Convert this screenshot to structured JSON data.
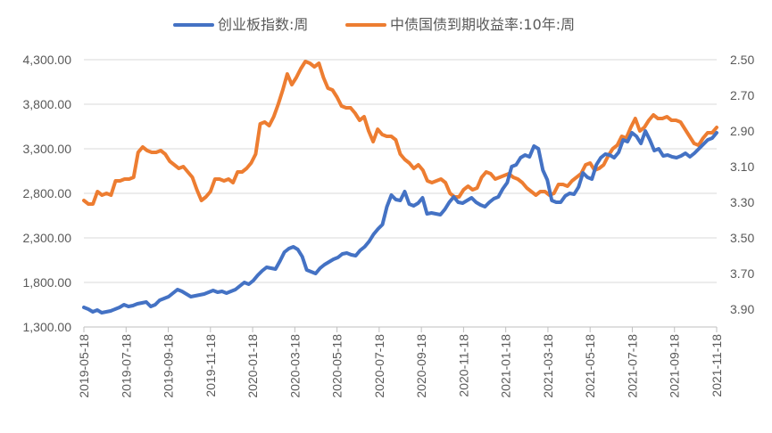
{
  "chart_data": {
    "type": "line",
    "title": "",
    "grid": "horizontal",
    "legend_position": "top",
    "y_left": {
      "min": 1300,
      "max": 4300,
      "step": 500,
      "ticks": [
        "1,300.00",
        "1,800.00",
        "2,300.00",
        "2,800.00",
        "3,300.00",
        "3,800.00",
        "4,300.00"
      ]
    },
    "y_right": {
      "min": 2.5,
      "max": 3.9,
      "reversed": true,
      "ticks": [
        "2.50",
        "2.70",
        "2.90",
        "3.10",
        "3.30",
        "3.50",
        "3.70",
        "3.90"
      ]
    },
    "x_ticks": [
      "2019-05-18",
      "2019-07-18",
      "2019-09-18",
      "2019-11-18",
      "2020-01-18",
      "2020-03-18",
      "2020-05-18",
      "2020-07-18",
      "2020-09-18",
      "2020-11-18",
      "2021-01-18",
      "2021-03-18",
      "2021-05-18",
      "2021-07-18",
      "2021-09-18",
      "2021-11-18"
    ],
    "series": [
      {
        "name": "创业板指数:周",
        "axis": "left",
        "color": "#4472C4",
        "values": [
          1520,
          1500,
          1470,
          1490,
          1460,
          1470,
          1480,
          1500,
          1520,
          1550,
          1530,
          1540,
          1560,
          1570,
          1580,
          1530,
          1550,
          1600,
          1620,
          1640,
          1680,
          1720,
          1700,
          1670,
          1640,
          1650,
          1660,
          1670,
          1690,
          1710,
          1690,
          1700,
          1680,
          1700,
          1720,
          1760,
          1800,
          1780,
          1820,
          1880,
          1930,
          1970,
          1960,
          1950,
          2040,
          2140,
          2180,
          2200,
          2170,
          2090,
          1940,
          1920,
          1900,
          1960,
          2000,
          2030,
          2060,
          2080,
          2120,
          2130,
          2110,
          2100,
          2160,
          2200,
          2260,
          2340,
          2400,
          2450,
          2650,
          2780,
          2730,
          2720,
          2820,
          2680,
          2660,
          2690,
          2750,
          2570,
          2580,
          2570,
          2560,
          2620,
          2700,
          2760,
          2700,
          2690,
          2720,
          2750,
          2700,
          2670,
          2650,
          2700,
          2740,
          2760,
          2850,
          2920,
          3100,
          3120,
          3200,
          3230,
          3210,
          3330,
          3300,
          3060,
          2950,
          2720,
          2700,
          2700,
          2770,
          2800,
          2790,
          2870,
          3030,
          2980,
          2960,
          3120,
          3200,
          3240,
          3230,
          3200,
          3260,
          3400,
          3380,
          3480,
          3440,
          3360,
          3500,
          3400,
          3280,
          3300,
          3220,
          3230,
          3210,
          3200,
          3220,
          3250,
          3210,
          3250,
          3300,
          3350,
          3400,
          3420,
          3480
        ]
      },
      {
        "name": "中债国债到期收益率:10年:周",
        "axis": "right",
        "color": "#ED7D31",
        "values": [
          3.29,
          3.31,
          3.31,
          3.24,
          3.26,
          3.25,
          3.26,
          3.18,
          3.18,
          3.17,
          3.17,
          3.16,
          3.02,
          2.99,
          3.01,
          3.02,
          3.02,
          3.01,
          3.03,
          3.07,
          3.09,
          3.11,
          3.1,
          3.13,
          3.16,
          3.23,
          3.29,
          3.27,
          3.24,
          3.17,
          3.17,
          3.18,
          3.17,
          3.19,
          3.13,
          3.13,
          3.11,
          3.08,
          3.03,
          2.86,
          2.85,
          2.87,
          2.82,
          2.75,
          2.67,
          2.58,
          2.64,
          2.6,
          2.55,
          2.51,
          2.52,
          2.54,
          2.52,
          2.6,
          2.66,
          2.67,
          2.71,
          2.76,
          2.77,
          2.77,
          2.8,
          2.84,
          2.82,
          2.9,
          2.96,
          2.89,
          2.92,
          2.93,
          2.93,
          2.95,
          3.03,
          3.06,
          3.08,
          3.11,
          3.09,
          3.12,
          3.18,
          3.19,
          3.18,
          3.17,
          3.19,
          3.25,
          3.27,
          3.27,
          3.23,
          3.21,
          3.23,
          3.22,
          3.16,
          3.13,
          3.14,
          3.17,
          3.16,
          3.15,
          3.14,
          3.16,
          3.17,
          3.19,
          3.22,
          3.24,
          3.26,
          3.24,
          3.24,
          3.26,
          3.25,
          3.2,
          3.2,
          3.21,
          3.18,
          3.16,
          3.14,
          3.09,
          3.08,
          3.12,
          3.11,
          3.09,
          3.04,
          3.0,
          2.98,
          2.93,
          2.94,
          2.88,
          2.83,
          2.9,
          2.88,
          2.84,
          2.81,
          2.83,
          2.83,
          2.82,
          2.84,
          2.84,
          2.85,
          2.89,
          2.93,
          2.97,
          2.98,
          2.94,
          2.91,
          2.91,
          2.88
        ]
      }
    ]
  }
}
